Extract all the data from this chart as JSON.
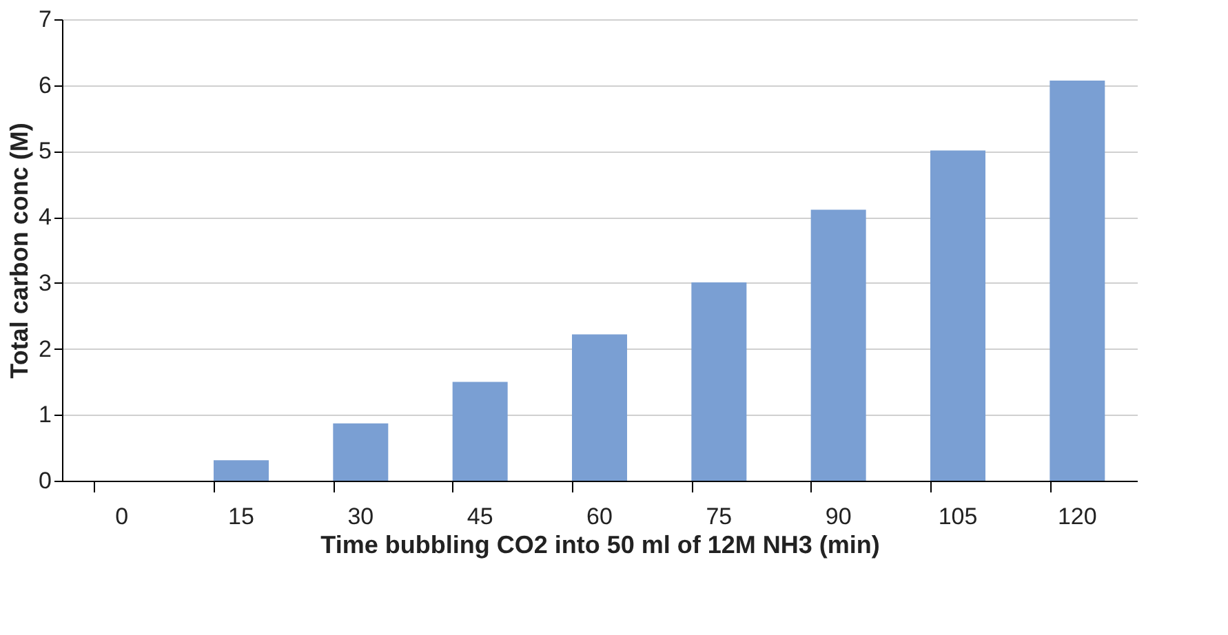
{
  "chart_data": {
    "type": "bar",
    "xlabel": "Time bubbling CO2 into 50 ml of 12M NH3   (min)",
    "ylabel": "Total carbon conc (M)",
    "categories": [
      "0",
      "15",
      "30",
      "45",
      "60",
      "75",
      "90",
      "105",
      "120"
    ],
    "series": [
      {
        "color": "#7a9fd3",
        "values": [
          0,
          0.31,
          0.87,
          1.5,
          2.22,
          3.01,
          4.11,
          5.01,
          6.07
        ]
      }
    ],
    "ylim": [
      0,
      7
    ],
    "yticks": [
      0,
      1,
      2,
      3,
      4,
      5,
      6,
      7
    ],
    "grid": "y"
  }
}
